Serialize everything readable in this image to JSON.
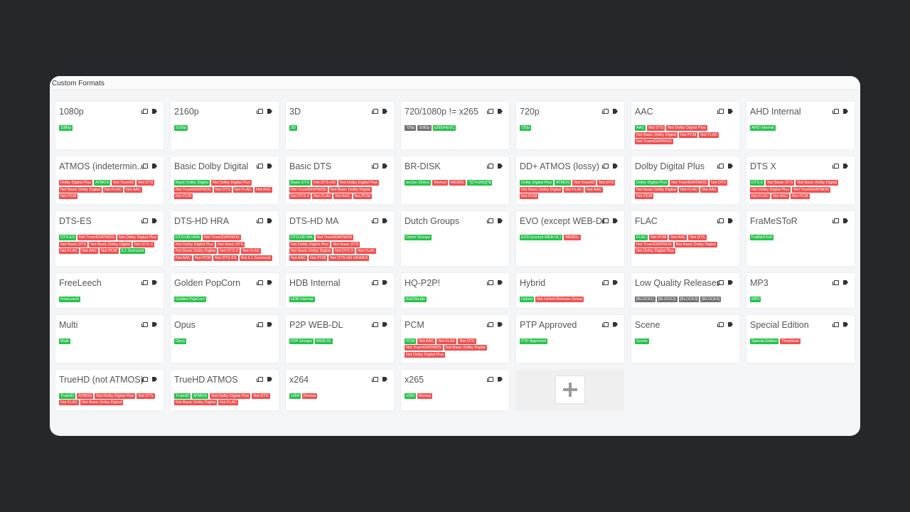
{
  "header": {
    "title": "Custom Formats"
  },
  "colors": {
    "include": "#27c24c",
    "exclude": "#f05050",
    "neutral": "#707070"
  },
  "formats": [
    {
      "name": "1080p",
      "tags": [
        [
          "1080p",
          "g"
        ]
      ]
    },
    {
      "name": "2160p",
      "tags": [
        [
          "2160p",
          "g"
        ]
      ]
    },
    {
      "name": "3D",
      "tags": [
        [
          "3D",
          "g"
        ]
      ]
    },
    {
      "name": "720/1080p != x265",
      "tags": [
        [
          "720p",
          "k"
        ],
        [
          "1080p",
          "k"
        ],
        [
          "x265/HEVC",
          "g"
        ]
      ]
    },
    {
      "name": "720p",
      "tags": [
        [
          "720p",
          "g"
        ]
      ]
    },
    {
      "name": "AAC",
      "tags": [
        [
          "AAC",
          "g"
        ],
        [
          "Not DTS",
          "r"
        ],
        [
          "Not Dolby Digital Plus",
          "r"
        ],
        [
          "Not Basic Dolby Digital",
          "r"
        ],
        [
          "Not PCM",
          "r"
        ],
        [
          "Not FLAC",
          "r"
        ],
        [
          "Not TrueHD/ATMOS",
          "r"
        ]
      ]
    },
    {
      "name": "AHD Internal",
      "tags": [
        [
          "AHD Internal",
          "g"
        ]
      ]
    },
    {
      "name": "ATMOS (indetermin...",
      "tags": [
        [
          "Dolby Digital Plus",
          "r"
        ],
        [
          "ATMOS",
          "g"
        ],
        [
          "Not TrueHD",
          "r"
        ],
        [
          "Not DTS",
          "r"
        ],
        [
          "Not Basic Dolby Digital",
          "r"
        ],
        [
          "Not FLAC",
          "r"
        ],
        [
          "Not AAC",
          "r"
        ],
        [
          "Not PCM",
          "r"
        ]
      ]
    },
    {
      "name": "Basic Dolby Digital",
      "tags": [
        [
          "Basic Dolby Digital",
          "g"
        ],
        [
          "Not Dolby Digital Plus",
          "r"
        ],
        [
          "Not TrueHD/ATMOS",
          "r"
        ],
        [
          "Not DTS",
          "r"
        ],
        [
          "Not FLAC",
          "r"
        ],
        [
          "Not AAC",
          "r"
        ],
        [
          "Not PCM",
          "r"
        ]
      ]
    },
    {
      "name": "Basic DTS",
      "tags": [
        [
          "Basic DTS",
          "g"
        ],
        [
          "Not DTS-HD",
          "r"
        ],
        [
          "Not Dolby Digital Plus",
          "r"
        ],
        [
          "Not TrueHD/ATMOS",
          "r"
        ],
        [
          "Not Basic Dolby Digital",
          "r"
        ],
        [
          "Not DTS X",
          "r"
        ],
        [
          "Not FLAC",
          "r"
        ],
        [
          "Not AAC",
          "r"
        ],
        [
          "Not PCM",
          "r"
        ]
      ]
    },
    {
      "name": "BR-DISK",
      "tags": [
        [
          "avc|vc-1|hevc",
          "g"
        ],
        [
          "Remux",
          "r"
        ],
        [
          "WEBDL",
          "r"
        ],
        [
          "^[(?!x265)]*$",
          "g"
        ]
      ]
    },
    {
      "name": "DD+ ATMOS (lossy)",
      "tags": [
        [
          "Dolby Digital Plus",
          "g"
        ],
        [
          "ATMOS",
          "g"
        ],
        [
          "Not TrueHD",
          "r"
        ],
        [
          "Not DTS",
          "r"
        ],
        [
          "Not Basic Dolby Digital",
          "r"
        ],
        [
          "Not FLAC",
          "r"
        ],
        [
          "Not AAC",
          "r"
        ],
        [
          "Not PCM",
          "r"
        ]
      ]
    },
    {
      "name": "Dolby Digital Plus",
      "tags": [
        [
          "Dolby Digital Plus",
          "g"
        ],
        [
          "Not TrueHD/ATMOS",
          "r"
        ],
        [
          "Not DTS",
          "r"
        ],
        [
          "Not Basic Dolby Digital",
          "r"
        ],
        [
          "Not FLAC",
          "r"
        ],
        [
          "Not AAC",
          "r"
        ],
        [
          "Not PCM",
          "r"
        ]
      ]
    },
    {
      "name": "DTS X",
      "tags": [
        [
          "DTS X",
          "g"
        ],
        [
          "Not Basic DTS",
          "r"
        ],
        [
          "Not Basic Dolby Digital",
          "r"
        ],
        [
          "Not Dolby Digital Plus",
          "r"
        ],
        [
          "Not TrueHD/ATMOS",
          "r"
        ],
        [
          "Not FLAC",
          "r"
        ],
        [
          "Not AAC",
          "r"
        ],
        [
          "Not PCM",
          "r"
        ]
      ]
    },
    {
      "name": "DTS-ES",
      "tags": [
        [
          "DTS-ES",
          "g"
        ],
        [
          "Not TrueHD/ATMOS",
          "r"
        ],
        [
          "Not Dolby Digital Plus",
          "r"
        ],
        [
          "Not Basic DTS",
          "r"
        ],
        [
          "Not Basic Dolby Digital",
          "r"
        ],
        [
          "Not DTS X",
          "r"
        ],
        [
          "Not FLAC",
          "r"
        ],
        [
          "Not AAC",
          "r"
        ],
        [
          "Not PCM",
          "r"
        ],
        [
          "6.1 Surround",
          "g"
        ]
      ]
    },
    {
      "name": "DTS-HD HRA",
      "tags": [
        [
          "DTS-HD HRA",
          "g"
        ],
        [
          "Not TrueHD/ATMOS",
          "r"
        ],
        [
          "Not Dolby Digital Plus",
          "r"
        ],
        [
          "Not Basic DTS",
          "r"
        ],
        [
          "Not Basic Dolby Digital",
          "r"
        ],
        [
          "Not DTS X",
          "r"
        ],
        [
          "Not FLAC",
          "r"
        ],
        [
          "Not AAC",
          "r"
        ],
        [
          "Not PCM",
          "r"
        ],
        [
          "Not DTS-ES",
          "r"
        ],
        [
          "Not 6.1 Surround",
          "r"
        ]
      ]
    },
    {
      "name": "DTS-HD MA",
      "tags": [
        [
          "DTS-HD MA",
          "g"
        ],
        [
          "Not TrueHD/ATMOS",
          "r"
        ],
        [
          "Not Dolby Digital Plus",
          "r"
        ],
        [
          "Not Basic DTS",
          "r"
        ],
        [
          "Not Basic Dolby Digital",
          "r"
        ],
        [
          "Not DTS X",
          "r"
        ],
        [
          "Not FLAC",
          "r"
        ],
        [
          "Not AAC",
          "r"
        ],
        [
          "Not PCM",
          "r"
        ],
        [
          "Not DTS-HD HRA/ES",
          "r"
        ]
      ]
    },
    {
      "name": "Dutch Groups",
      "tags": [
        [
          "Dutch Groups",
          "g"
        ]
      ]
    },
    {
      "name": "EVO (except WEB-DL)",
      "tags": [
        [
          "EVO (except WEB-DL)",
          "g"
        ],
        [
          "WEBDL",
          "r"
        ]
      ]
    },
    {
      "name": "FLAC",
      "tags": [
        [
          "FLAC",
          "g"
        ],
        [
          "Not PCM",
          "r"
        ],
        [
          "Not AAC",
          "r"
        ],
        [
          "Not DTS",
          "r"
        ],
        [
          "Not TrueHD/ATMOS",
          "r"
        ],
        [
          "Not Basic Dolby Digital",
          "r"
        ],
        [
          "Not Dolby Digital Plus",
          "r"
        ]
      ]
    },
    {
      "name": "FraMeSToR",
      "tags": [
        [
          "FraMeSToR",
          "g"
        ]
      ]
    },
    {
      "name": "FreeLeech",
      "tags": [
        [
          "FreeLeech",
          "g"
        ]
      ]
    },
    {
      "name": "Golden PopCorn",
      "tags": [
        [
          "Golden PopCorn",
          "g"
        ]
      ]
    },
    {
      "name": "HDB Internal",
      "tags": [
        [
          "HDB Internal",
          "g"
        ]
      ]
    },
    {
      "name": "HQ-P2P!",
      "tags": [
        [
          "BHDStudio",
          "g"
        ]
      ]
    },
    {
      "name": "Hybrid",
      "tags": [
        [
          "Hybrid",
          "g"
        ],
        [
          "Not Hybrid Release Group",
          "r"
        ]
      ]
    },
    {
      "name": "Low Quality Releases",
      "tags": [
        [
          "[BLOCK1]",
          "k"
        ],
        [
          "[BLOCK2]",
          "k"
        ],
        [
          "[BLOCK3]",
          "k"
        ],
        [
          "[BLOCK4]",
          "k"
        ]
      ]
    },
    {
      "name": "MP3",
      "tags": [
        [
          "MP3",
          "g"
        ]
      ]
    },
    {
      "name": "Multi",
      "tags": [
        [
          "Multi",
          "g"
        ]
      ]
    },
    {
      "name": "Opus",
      "tags": [
        [
          "Opus",
          "g"
        ]
      ]
    },
    {
      "name": "P2P WEB-DL",
      "tags": [
        [
          "P2P Groups",
          "g"
        ],
        [
          "WEB-DL",
          "g"
        ]
      ]
    },
    {
      "name": "PCM",
      "tags": [
        [
          "PCM",
          "g"
        ],
        [
          "Not AAC",
          "r"
        ],
        [
          "Not FLAC",
          "r"
        ],
        [
          "Not DTS",
          "r"
        ],
        [
          "Not TrueHD/ATMOS",
          "r"
        ],
        [
          "Not Basic Dolby Digital",
          "r"
        ],
        [
          "Not Dolby Digital Plus",
          "r"
        ]
      ]
    },
    {
      "name": "PTP Approved",
      "tags": [
        [
          "PTP Approved",
          "g"
        ]
      ]
    },
    {
      "name": "Scene",
      "tags": [
        [
          "Scene",
          "g"
        ]
      ]
    },
    {
      "name": "Special Edition",
      "tags": [
        [
          "Special Edition",
          "g"
        ],
        [
          "Theatrical",
          "r"
        ]
      ]
    },
    {
      "name": "TrueHD (not ATMOS)",
      "tags": [
        [
          "TrueHD",
          "g"
        ],
        [
          "ATMOS",
          "r"
        ],
        [
          "Not Dolby Digital Plus",
          "r"
        ],
        [
          "Not DTS",
          "r"
        ],
        [
          "Not FLAC",
          "r"
        ],
        [
          "Not Basic Dolby Digital",
          "r"
        ]
      ]
    },
    {
      "name": "TrueHD ATMOS",
      "tags": [
        [
          "TrueHD",
          "g"
        ],
        [
          "ATMOS",
          "g"
        ],
        [
          "Not Dolby Digital Plus",
          "r"
        ],
        [
          "Not DTS",
          "r"
        ],
        [
          "Not Basic Dolby Digital",
          "r"
        ],
        [
          "Not FLAC",
          "r"
        ]
      ]
    },
    {
      "name": "x264",
      "tags": [
        [
          "x264",
          "g"
        ],
        [
          "Remux",
          "r"
        ]
      ]
    },
    {
      "name": "x265",
      "tags": [
        [
          "x265",
          "g"
        ],
        [
          "Remux",
          "r"
        ]
      ]
    }
  ]
}
